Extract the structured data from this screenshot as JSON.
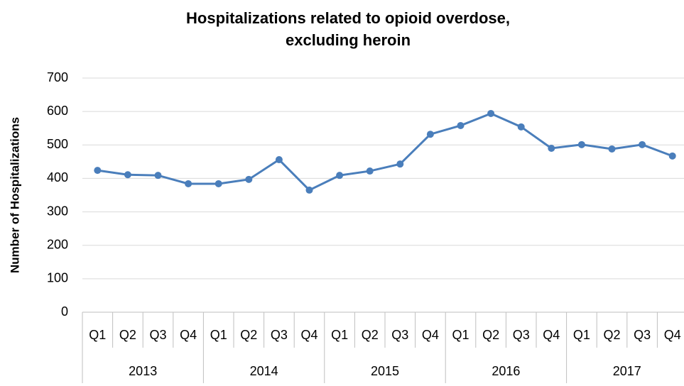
{
  "chart_data": {
    "type": "line",
    "title": "Hospitalizations related to opioid overdose, excluding heroin",
    "y_label": "Number of Hospitalizations",
    "categories": [
      "Q1",
      "Q2",
      "Q3",
      "Q4",
      "Q1",
      "Q2",
      "Q3",
      "Q4",
      "Q1",
      "Q2",
      "Q3",
      "Q4",
      "Q1",
      "Q2",
      "Q3",
      "Q4",
      "Q1",
      "Q2",
      "Q3",
      "Q4"
    ],
    "groups": [
      "2013",
      "2014",
      "2015",
      "2016",
      "2017"
    ],
    "series": [
      {
        "name": "Hospitalizations",
        "color": "#4a7ebb",
        "values": [
          424,
          411,
          409,
          384,
          384,
          397,
          456,
          365,
          409,
          422,
          443,
          532,
          558,
          594,
          554,
          490,
          501,
          488,
          501,
          467
        ]
      }
    ],
    "ylim": [
      0,
      700
    ],
    "yticks": [
      0,
      100,
      200,
      300,
      400,
      500,
      600,
      700
    ],
    "grid": true
  }
}
